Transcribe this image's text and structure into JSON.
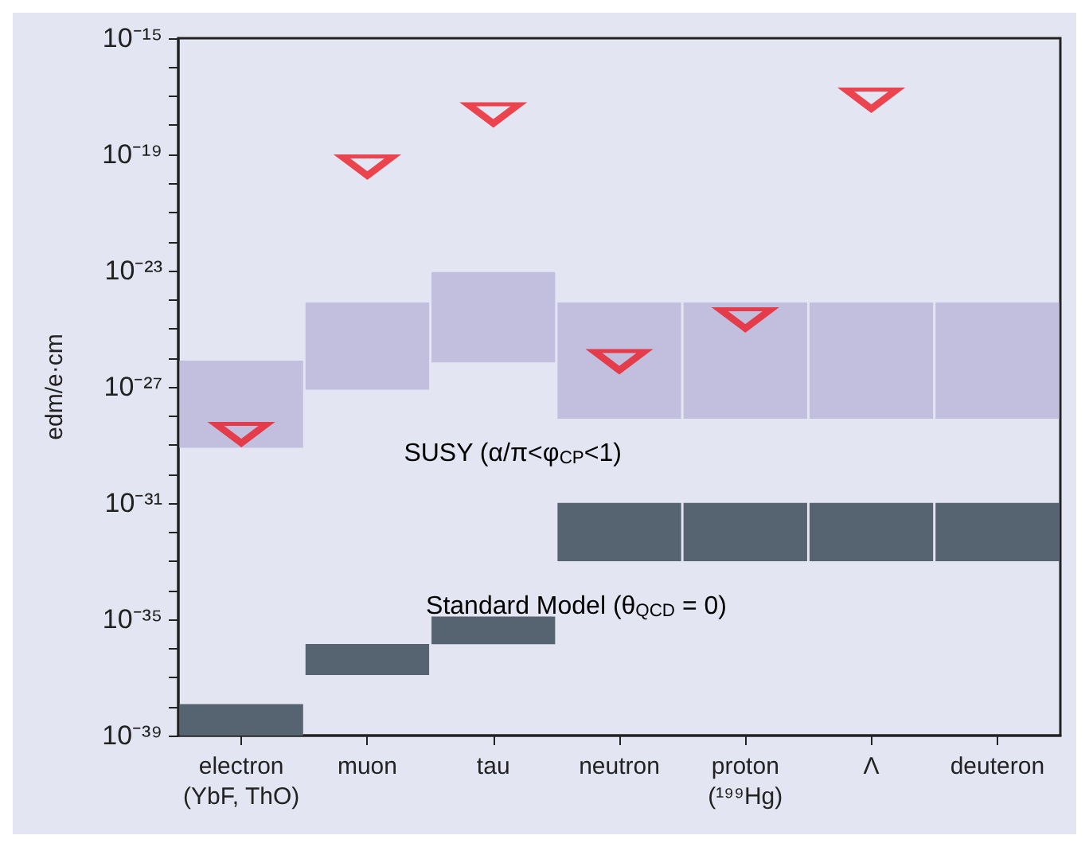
{
  "chart_data": {
    "type": "bar",
    "ylabel": "edm/e·cm",
    "log": "y",
    "categories": [
      "electron\n(YbF, ThO)",
      "muon",
      "tau",
      "neutron",
      "proton\n(¹⁹⁹Hg)",
      "Λ",
      "deuteron"
    ],
    "series": [
      {
        "color": "#c2bfde",
        "base": [
          8e-30,
          8e-28,
          7e-27,
          8e-29,
          8e-29,
          8e-29,
          8e-29
        ],
        "values": [
          8e-27,
          8e-25,
          9e-24,
          8e-25,
          8e-25,
          8e-25,
          8e-25
        ]
      },
      {
        "color": "#566370",
        "base": [
          1e-39,
          1.2e-37,
          1.4e-36,
          1e-33,
          1e-33,
          1e-33,
          1e-33
        ],
        "values": [
          1.1e-38,
          1.3e-36,
          1.1e-35,
          1e-31,
          1e-31,
          1e-31,
          1e-31
        ]
      },
      {
        "type": "scatter",
        "color": "#ec1c24",
        "marker": "triangle",
        "values": [
          2.5e-29,
          4e-20,
          2.5e-18,
          8e-27,
          2.2e-25,
          8e-18,
          null
        ]
      }
    ],
    "ylim": [
      1e-39,
      1e-15
    ],
    "yticks": [
      {
        "value": 1e-39,
        "label": "10⁻³⁹"
      },
      {
        "value": 1e-38,
        "label": null
      },
      {
        "value": 1e-37,
        "label": null
      },
      {
        "value": 1e-36,
        "label": null
      },
      {
        "value": 1e-35,
        "label": "10⁻³⁵"
      },
      {
        "value": 1e-34,
        "label": null
      },
      {
        "value": 1e-33,
        "label": null
      },
      {
        "value": 1e-32,
        "label": null
      },
      {
        "value": 1e-31,
        "label": "10⁻³¹"
      },
      {
        "value": 1e-30,
        "label": null
      },
      {
        "value": 1e-29,
        "label": null
      },
      {
        "value": 1e-28,
        "label": null
      },
      {
        "value": 1e-27,
        "label": "10⁻²⁷"
      },
      {
        "value": 1e-26,
        "label": null
      },
      {
        "value": 1e-25,
        "label": null
      },
      {
        "value": 1e-24,
        "label": null
      },
      {
        "value": 1e-23,
        "label": "10⁻²³"
      },
      {
        "value": 1e-22,
        "label": null
      },
      {
        "value": 1e-21,
        "label": null
      },
      {
        "value": 1e-20,
        "label": null
      },
      {
        "value": 1e-19,
        "label": "10⁻¹⁹"
      },
      {
        "value": 1e-18,
        "label": null
      },
      {
        "value": 1e-17,
        "label": null
      },
      {
        "value": 1e-16,
        "label": null
      },
      {
        "value": 1e-15,
        "label": "10⁻¹⁵"
      }
    ],
    "grid": false,
    "annotations": [
      "SUSY (α/π<φ$_{CP}$<1)",
      "Standard Model (θ$_{QCD}$ = 0)"
    ]
  }
}
